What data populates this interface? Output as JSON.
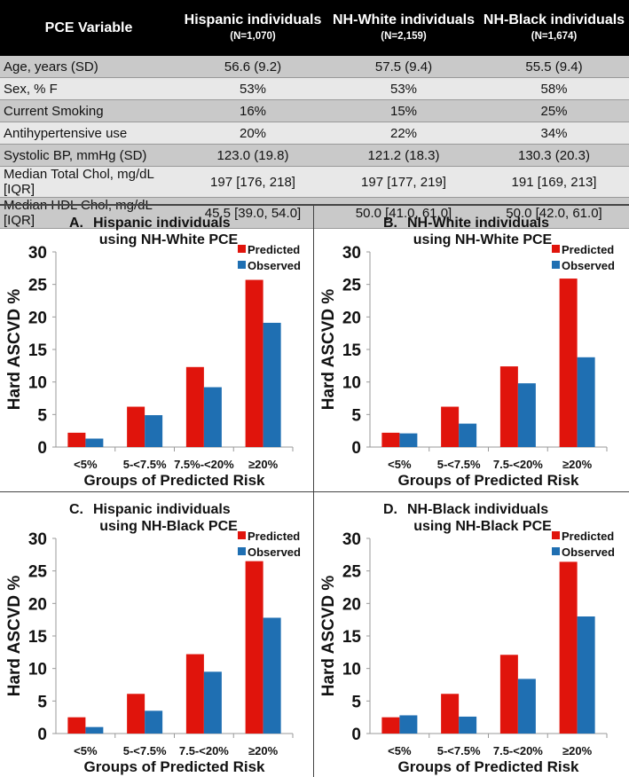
{
  "table": {
    "headers": [
      {
        "title": "PCE Variable"
      },
      {
        "title": "Hispanic individuals",
        "n": "(N=1,070)"
      },
      {
        "title": "NH-White individuals",
        "n": "(N=2,159)"
      },
      {
        "title": "NH-Black individuals",
        "n": "(N=1,674)"
      }
    ],
    "rows": [
      [
        "Age, years (SD)",
        "56.6 (9.2)",
        "57.5 (9.4)",
        "55.5 (9.4)"
      ],
      [
        "Sex, % F",
        "53%",
        "53%",
        "58%"
      ],
      [
        "Current Smoking",
        "16%",
        "15%",
        "25%"
      ],
      [
        "Antihypertensive use",
        "20%",
        "22%",
        "34%"
      ],
      [
        "Systolic BP, mmHg (SD)",
        "123.0 (19.8)",
        "121.2 (18.3)",
        "130.3 (20.3)"
      ],
      [
        "Median Total Chol, mg/dL [IQR]",
        "197 [176, 218]",
        "197 [177, 219]",
        "191 [169, 213]"
      ],
      [
        "Median HDL Chol, mg/dL [IQR]",
        "45.5 [39.0, 54.0]",
        "50.0 [41.0, 61.0]",
        "50.0 [42.0, 61.0]"
      ]
    ]
  },
  "colors": {
    "predicted": "#e0140c",
    "observed": "#1f6fb2"
  },
  "chart_data": [
    {
      "type": "bar",
      "letter": "A.",
      "title": [
        "Hispanic individuals",
        "using NH-White PCE"
      ],
      "categories": [
        "<5%",
        "5-<7.5%",
        "7.5%-<20%",
        "≥20%"
      ],
      "series": [
        {
          "name": "Predicted",
          "values": [
            2.2,
            6.2,
            12.3,
            25.7
          ]
        },
        {
          "name": "Observed",
          "values": [
            1.3,
            4.9,
            9.2,
            19.1
          ]
        }
      ],
      "xlabel": "Groups of Predicted Risk",
      "ylabel": "Hard ASCVD %",
      "ylim": [
        0,
        30
      ],
      "yticks": [
        "0",
        "5",
        "10",
        "15",
        "20",
        "25",
        "30"
      ],
      "legend": "top-right",
      "grid": false
    },
    {
      "type": "bar",
      "letter": "B.",
      "title": [
        "NH-White individuals",
        "using NH-White PCE"
      ],
      "categories": [
        "<5%",
        "5-<7.5%",
        "7.5-<20%",
        "≥20%"
      ],
      "series": [
        {
          "name": "Predicted",
          "values": [
            2.2,
            6.2,
            12.4,
            25.9
          ]
        },
        {
          "name": "Observed",
          "values": [
            2.1,
            3.6,
            9.8,
            13.8
          ]
        }
      ],
      "xlabel": "Groups of Predicted Risk",
      "ylabel": "Hard ASCVD %",
      "ylim": [
        0,
        30
      ],
      "yticks": [
        "0",
        "5",
        "10",
        "15",
        "20",
        "25",
        "30"
      ],
      "legend": "top-right",
      "grid": false
    },
    {
      "type": "bar",
      "letter": "C.",
      "title": [
        "Hispanic individuals",
        "using NH-Black PCE"
      ],
      "categories": [
        "<5%",
        "5-<7.5%",
        "7.5-<20%",
        "≥20%"
      ],
      "series": [
        {
          "name": "Predicted",
          "values": [
            2.5,
            6.1,
            12.2,
            26.5
          ]
        },
        {
          "name": "Observed",
          "values": [
            1.0,
            3.5,
            9.5,
            17.8
          ]
        }
      ],
      "xlabel": "Groups of Predicted Risk",
      "ylabel": "Hard ASCVD %",
      "ylim": [
        0,
        30
      ],
      "yticks": [
        "0",
        "5",
        "10",
        "15",
        "20",
        "25",
        "30"
      ],
      "legend": "top-right",
      "grid": false
    },
    {
      "type": "bar",
      "letter": "D.",
      "title": [
        "NH-Black individuals",
        "using NH-Black PCE"
      ],
      "categories": [
        "<5%",
        "5-<7.5%",
        "7.5-<20%",
        "≥20%"
      ],
      "series": [
        {
          "name": "Predicted",
          "values": [
            2.5,
            6.1,
            12.1,
            26.4
          ]
        },
        {
          "name": "Observed",
          "values": [
            2.8,
            2.6,
            8.4,
            18.0
          ]
        }
      ],
      "xlabel": "Groups of Predicted Risk",
      "ylabel": "Hard ASCVD %",
      "ylim": [
        0,
        30
      ],
      "yticks": [
        "0",
        "5",
        "10",
        "15",
        "20",
        "25",
        "30"
      ],
      "legend": "top-right",
      "grid": false
    }
  ]
}
